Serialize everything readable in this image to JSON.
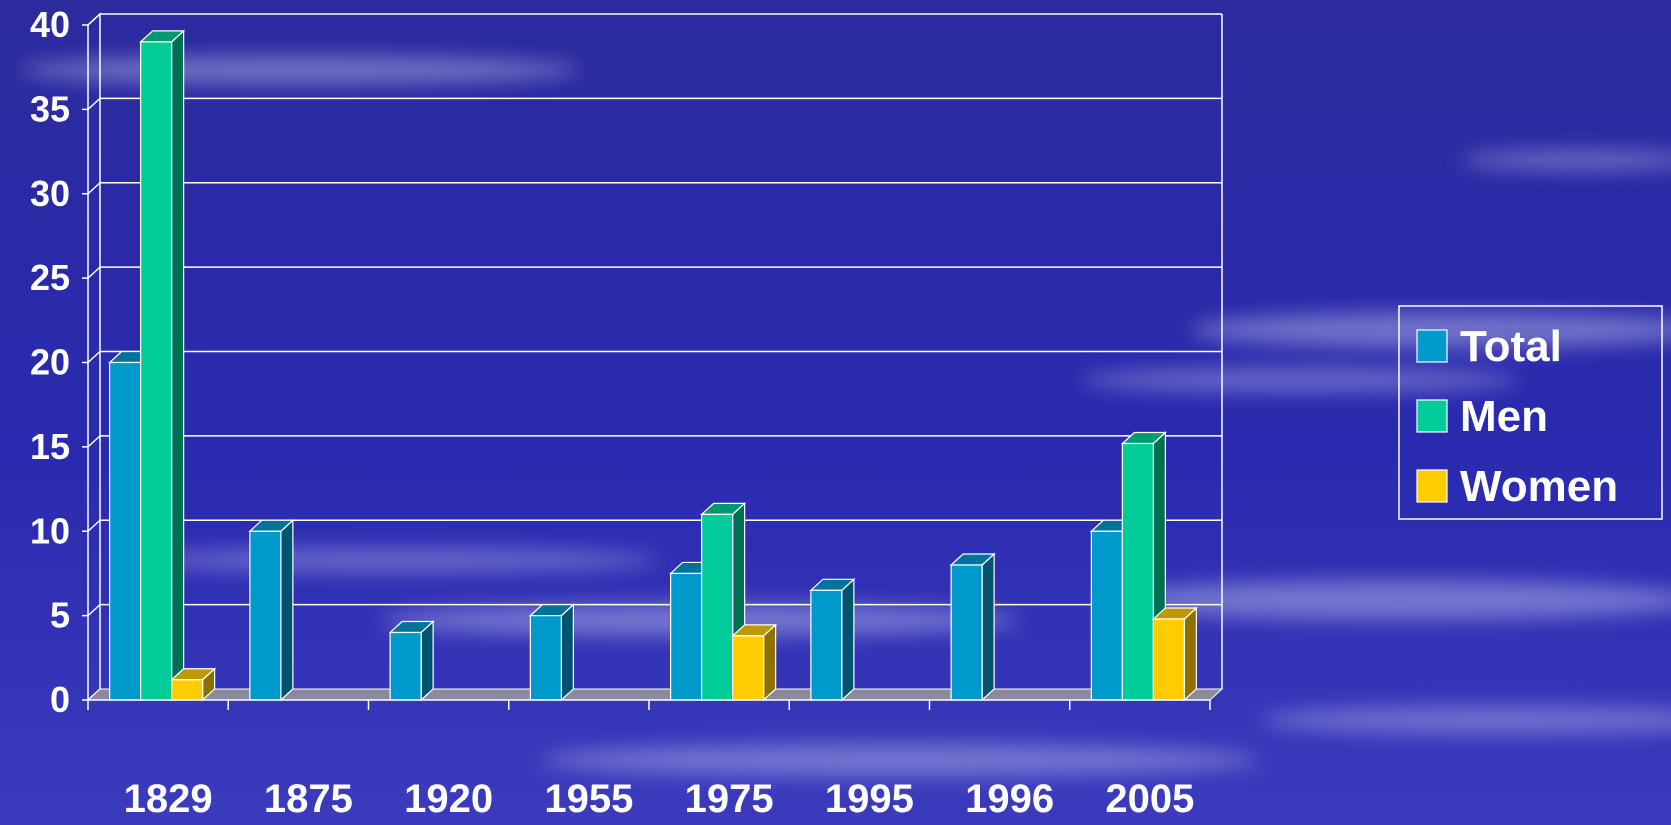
{
  "colors": {
    "background_top": "#2a2a9a",
    "background_bottom": "#3a3ab8",
    "grid": "#ffffff",
    "floor": "#8a8a9a",
    "Total": "#0099cc",
    "Men": "#00cc99",
    "Women": "#ffcc00"
  },
  "chart_data": {
    "type": "bar",
    "title": "",
    "xlabel": "",
    "ylabel": "",
    "ylim": [
      0,
      40
    ],
    "yticks": [
      "0",
      "5",
      "10",
      "15",
      "20",
      "25",
      "30",
      "35",
      "40"
    ],
    "grid": true,
    "legend_position": "right",
    "categories": [
      "1829",
      "1875",
      "1920",
      "1955",
      "1975",
      "1995",
      "1996",
      "2005"
    ],
    "series": [
      {
        "name": "Total",
        "values": [
          20,
          10,
          4,
          5,
          7.5,
          6.5,
          8,
          10
        ]
      },
      {
        "name": "Men",
        "values": [
          39,
          null,
          null,
          null,
          11,
          null,
          null,
          15.2
        ]
      },
      {
        "name": "Women",
        "values": [
          1.2,
          null,
          null,
          null,
          3.8,
          null,
          null,
          4.8
        ]
      }
    ]
  }
}
